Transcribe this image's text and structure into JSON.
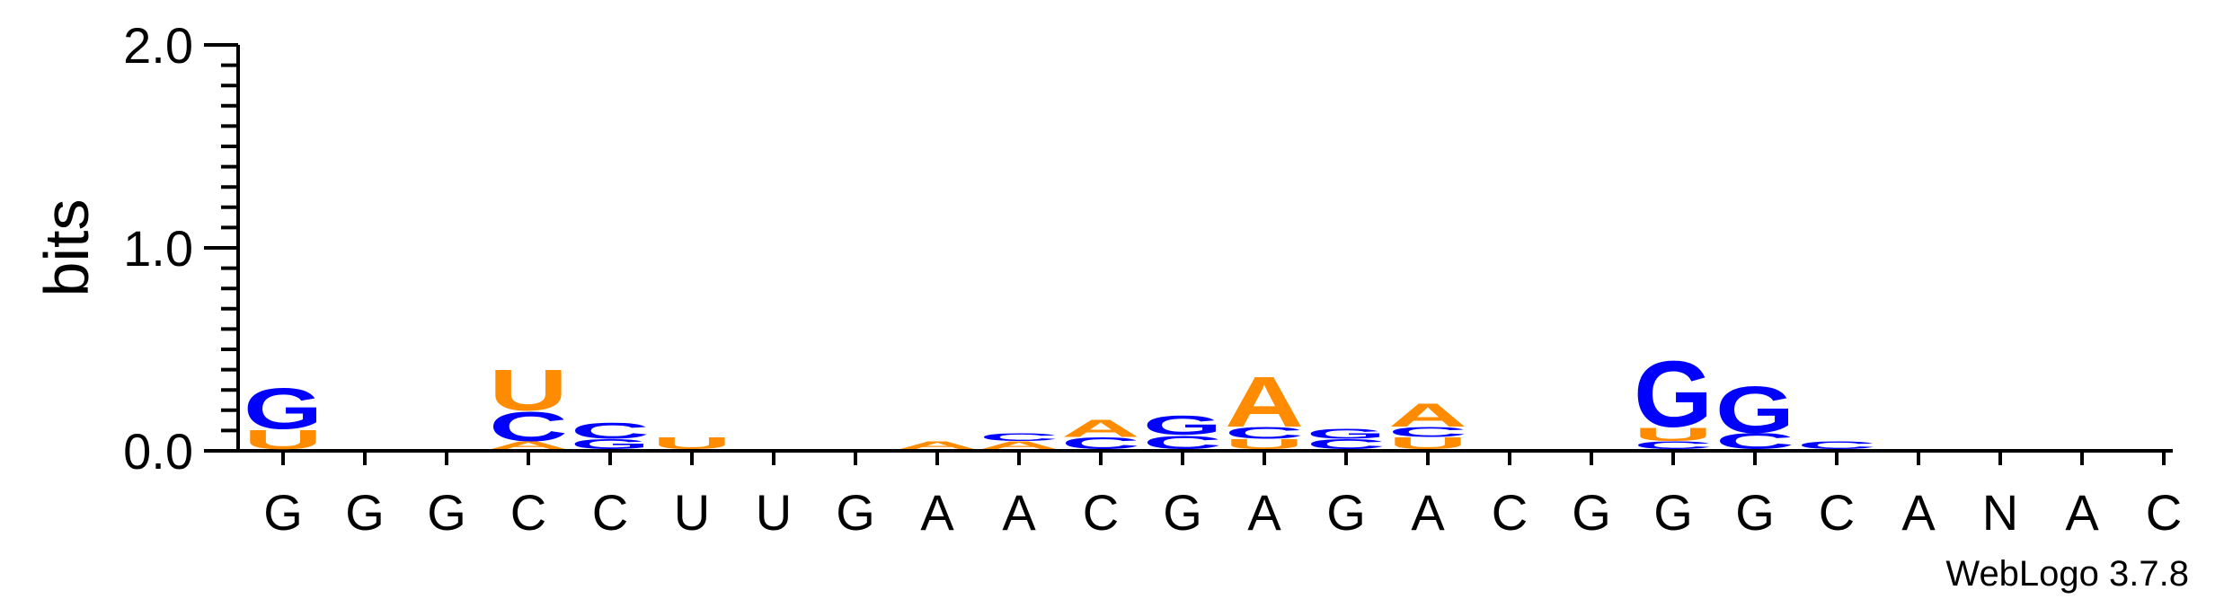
{
  "chart_data": {
    "type": "sequence_logo",
    "ylabel": "bits",
    "ylim": [
      0,
      2
    ],
    "yticks": [
      "0.0",
      "1.0",
      "2.0"
    ],
    "positions": [
      "G",
      "G",
      "G",
      "C",
      "C",
      "U",
      "U",
      "G",
      "A",
      "A",
      "C",
      "G",
      "A",
      "G",
      "A",
      "C",
      "G",
      "G",
      "G",
      "C",
      "A",
      "N",
      "A",
      "C"
    ],
    "colors": {
      "A": "#ff8c00",
      "U": "#ff8c00",
      "G": "#0000ff",
      "C": "#0000ff",
      "N": "#0000ff"
    },
    "columns": [
      [
        {
          "l": "U",
          "h": 0.1
        },
        {
          "l": "G",
          "h": 0.21
        }
      ],
      [],
      [],
      [
        {
          "l": "A",
          "h": 0.04
        },
        {
          "l": "C",
          "h": 0.15
        },
        {
          "l": "U",
          "h": 0.21
        }
      ],
      [
        {
          "l": "G",
          "h": 0.05
        },
        {
          "l": "C",
          "h": 0.08
        }
      ],
      [
        {
          "l": "U",
          "h": 0.06
        }
      ],
      [],
      [],
      [
        {
          "l": "A",
          "h": 0.04
        }
      ],
      [
        {
          "l": "A",
          "h": 0.04
        },
        {
          "l": "C",
          "h": 0.04
        }
      ],
      [
        {
          "l": "C",
          "h": 0.06
        },
        {
          "l": "A",
          "h": 0.09
        }
      ],
      [
        {
          "l": "C",
          "h": 0.07
        },
        {
          "l": "G",
          "h": 0.1
        }
      ],
      [
        {
          "l": "U",
          "h": 0.05
        },
        {
          "l": "C",
          "h": 0.06
        },
        {
          "l": "A",
          "h": 0.26
        }
      ],
      [
        {
          "l": "C",
          "h": 0.05
        },
        {
          "l": "G",
          "h": 0.05
        }
      ],
      [
        {
          "l": "U",
          "h": 0.06
        },
        {
          "l": "C",
          "h": 0.05
        },
        {
          "l": "A",
          "h": 0.12
        }
      ],
      [],
      [],
      [
        {
          "l": "C",
          "h": 0.04
        },
        {
          "l": "U",
          "h": 0.07
        },
        {
          "l": "G",
          "h": 0.34
        }
      ],
      [
        {
          "l": "C",
          "h": 0.08
        },
        {
          "l": "G",
          "h": 0.24
        }
      ],
      [
        {
          "l": "C",
          "h": 0.04
        }
      ],
      [],
      [],
      [],
      []
    ]
  },
  "credit": "WebLogo 3.7.8"
}
